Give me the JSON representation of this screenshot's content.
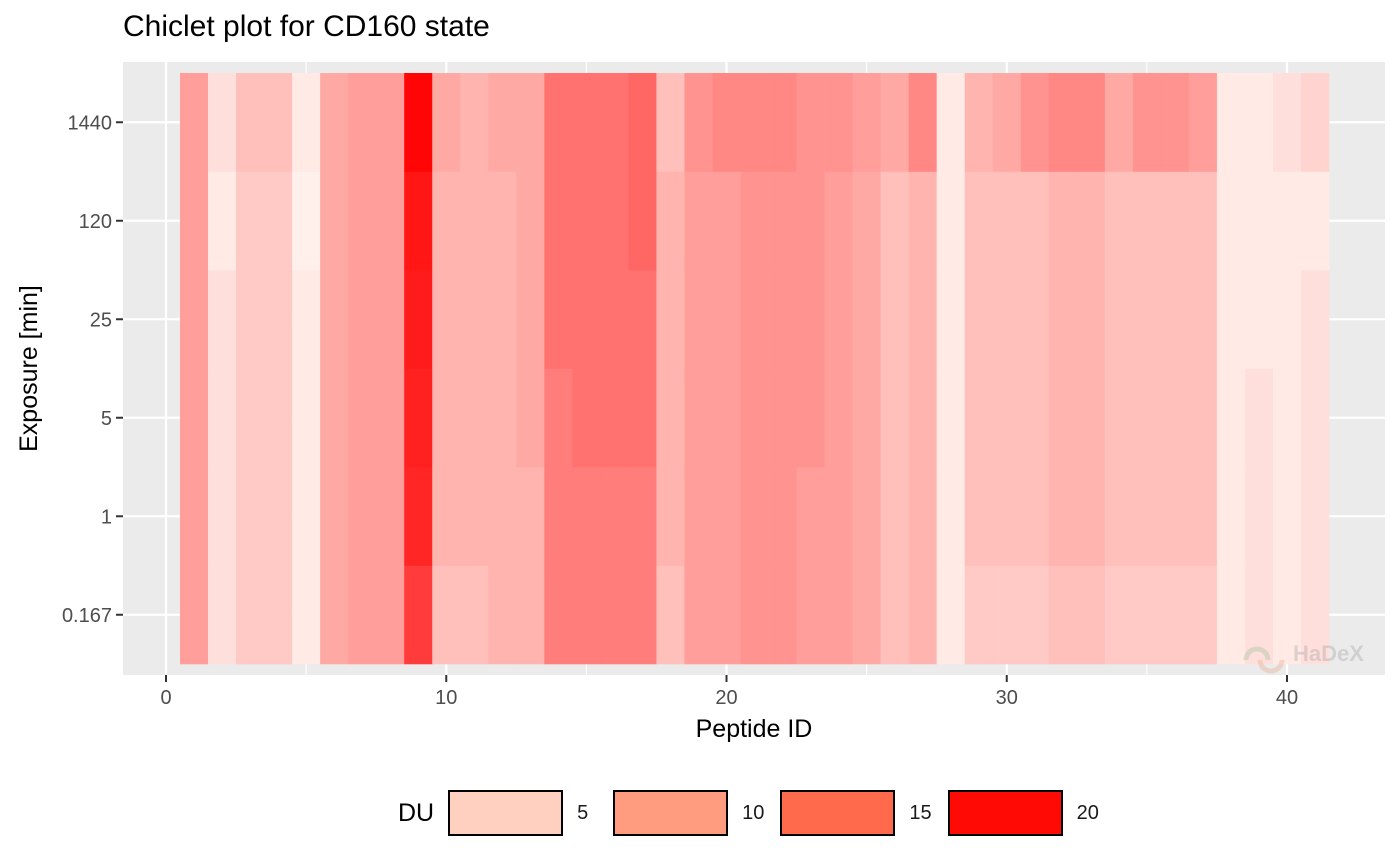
{
  "chart_data": {
    "type": "heatmap",
    "title": "Chiclet plot for CD160 state",
    "xlabel": "Peptide ID",
    "ylabel": "Exposure [min]",
    "xlim": [
      -1.5,
      43
    ],
    "x_ticks": [
      0,
      10,
      20,
      30,
      40
    ],
    "exposures": [
      "0.167",
      "1",
      "5",
      "25",
      "120",
      "1440"
    ],
    "peptides": [
      1,
      2,
      3,
      4,
      5,
      6,
      7,
      8,
      9,
      10,
      11,
      12,
      13,
      14,
      15,
      16,
      17,
      18,
      19,
      20,
      21,
      22,
      23,
      24,
      25,
      26,
      27,
      28,
      29,
      30,
      31,
      32,
      33,
      34,
      35,
      36,
      37,
      38,
      39,
      40,
      41
    ],
    "values": [
      [
        8,
        2,
        4,
        4,
        1,
        7,
        8,
        8,
        17,
        5,
        5,
        6,
        6,
        11,
        11,
        11,
        11,
        5,
        8,
        8,
        9,
        9,
        8,
        8,
        7,
        5,
        6,
        1,
        4,
        4,
        4,
        5,
        5,
        4,
        4,
        4,
        4,
        1,
        2,
        1,
        2
      ],
      [
        8,
        2,
        4,
        4,
        1,
        7,
        8,
        8,
        19,
        6,
        6,
        6,
        6,
        11,
        11,
        11,
        11,
        6,
        8,
        8,
        9,
        9,
        8,
        8,
        7,
        5,
        6,
        1,
        5,
        5,
        5,
        6,
        6,
        5,
        5,
        5,
        5,
        1,
        2,
        1,
        2
      ],
      [
        8,
        2,
        4,
        4,
        1,
        7,
        8,
        8,
        19.5,
        6,
        6,
        6,
        7,
        11,
        12,
        12,
        12,
        6,
        8,
        8,
        9,
        9,
        9,
        8,
        7,
        5,
        6,
        1,
        5,
        5,
        5,
        6,
        6,
        5,
        5,
        5,
        5,
        1,
        2,
        1,
        2
      ],
      [
        8,
        2,
        4,
        4,
        1,
        7,
        8,
        8,
        20,
        6,
        6,
        6,
        7,
        12,
        12,
        12,
        12,
        6,
        8,
        8,
        9,
        9,
        9,
        8,
        7,
        5,
        6,
        1,
        5,
        5,
        5,
        6,
        6,
        5,
        5,
        5,
        5,
        1,
        1,
        1,
        2
      ],
      [
        8,
        1,
        4,
        4,
        0.5,
        7,
        8,
        8,
        20.5,
        6,
        6,
        6,
        7,
        12,
        12,
        12,
        13,
        6,
        8,
        8,
        9,
        9,
        9,
        8,
        7,
        5,
        6,
        1,
        5,
        5,
        5,
        6,
        6,
        5,
        5,
        5,
        5,
        1,
        1,
        1,
        1
      ],
      [
        8,
        2,
        5,
        5,
        1,
        7,
        8,
        8,
        22,
        7,
        6,
        7,
        7,
        12,
        12,
        12,
        13,
        5,
        9,
        10,
        10,
        10,
        9,
        9,
        8,
        7,
        10,
        1,
        6,
        7,
        9,
        10,
        10,
        7,
        9,
        9,
        8,
        1,
        1,
        2,
        3
      ]
    ],
    "legend": {
      "title": "DU",
      "labels": [
        "5",
        "10",
        "15",
        "20"
      ],
      "colors": [
        "#ffcfbf",
        "#ff9c80",
        "#ff6a4d",
        "#ff0a05"
      ]
    }
  },
  "watermark": {
    "text": "HaDeX"
  },
  "colors": {
    "panel": "#ebebeb",
    "grid": "#ffffff",
    "low": "#fff5f0",
    "high": "#ff0000"
  }
}
